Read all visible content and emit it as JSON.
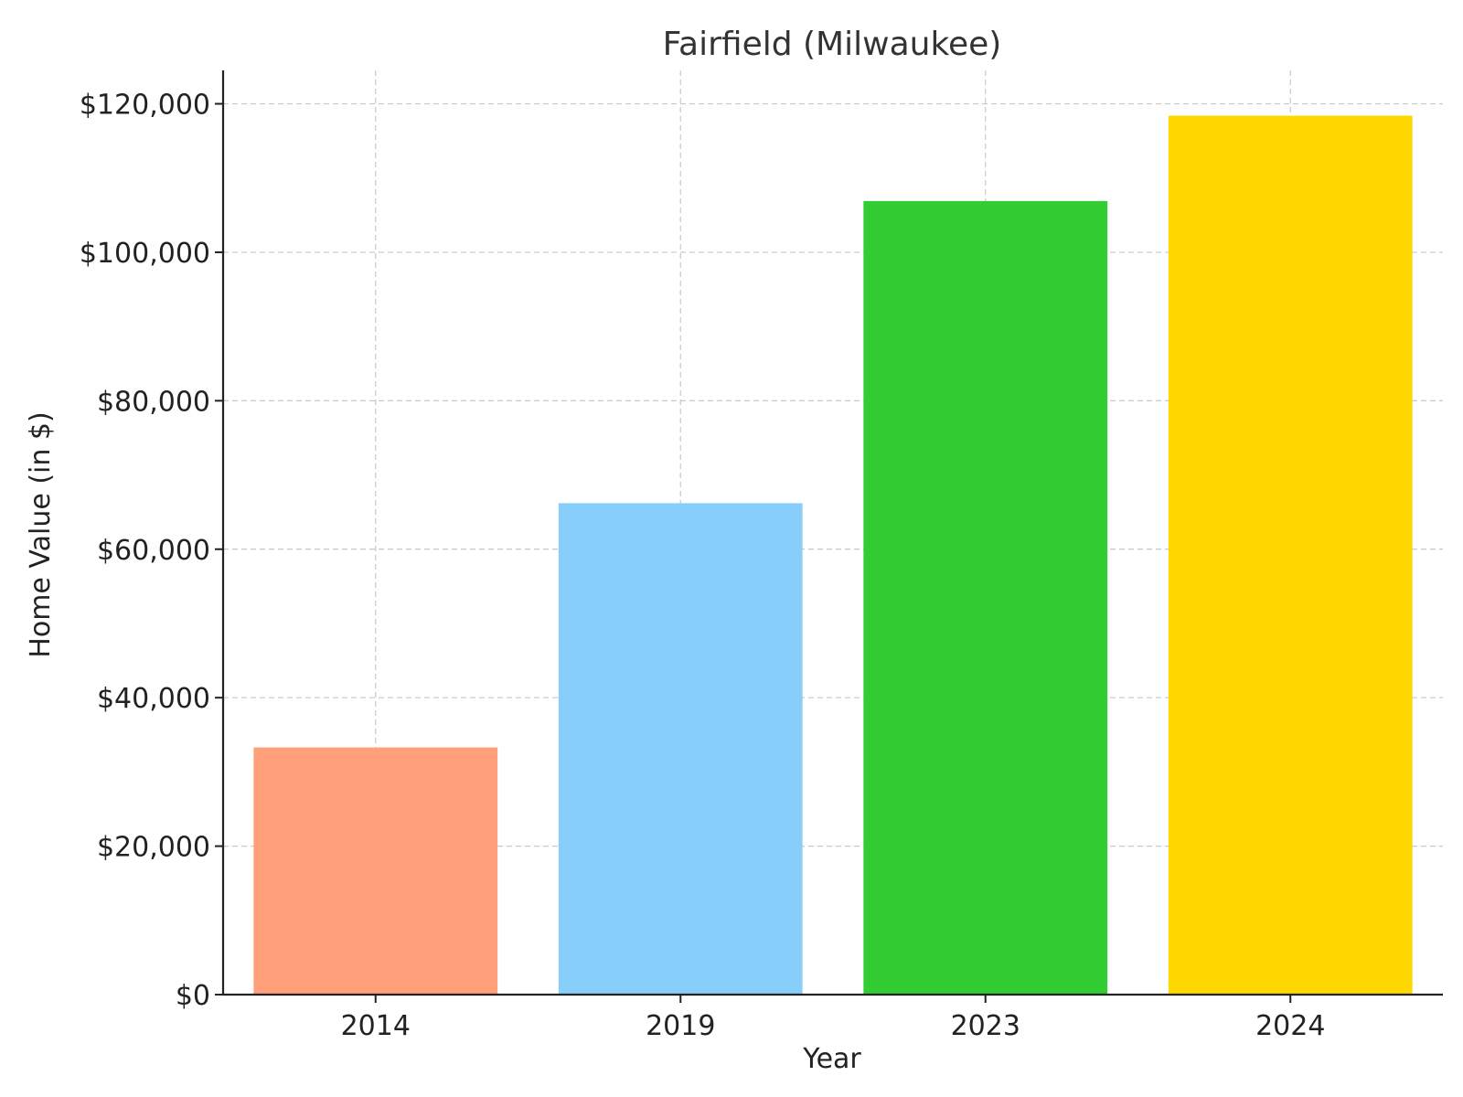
{
  "chart_data": {
    "type": "bar",
    "title": "Fairfield (Milwaukee)",
    "xlabel": "Year",
    "ylabel": "Home Value (in $)",
    "categories": [
      "2014",
      "2019",
      "2023",
      "2024"
    ],
    "values": [
      33300,
      66200,
      106900,
      118400
    ],
    "colors": [
      "#FFA07A",
      "#87CEFA",
      "#32CD32",
      "#FFD700"
    ],
    "ylim": [
      0,
      124500
    ],
    "yticks": [
      0,
      20000,
      40000,
      60000,
      80000,
      100000,
      120000
    ],
    "ytick_labels": [
      "$0",
      "$20,000",
      "$40,000",
      "$60,000",
      "$80,000",
      "$100,000",
      "$120,000"
    ],
    "grid": true,
    "grid_style": "dashed"
  }
}
